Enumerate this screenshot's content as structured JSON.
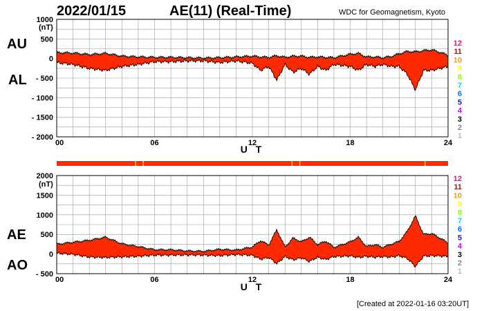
{
  "header": {
    "date": "2022/01/15",
    "title": "AE(11) (Real-Time)",
    "source": "WDC for Geomagnetism, Kyoto"
  },
  "footer": {
    "created": "[Created at 2022-01-16 03:20UT]"
  },
  "colors": {
    "fill": "#ff2a00",
    "line": "#000000",
    "grid": "#9a9a9a",
    "bar": "#ff2a00",
    "bar_yellow": "#ffd200"
  },
  "legend": [
    {
      "label": "12",
      "color": "#ff0090"
    },
    {
      "label": "11",
      "color": "#d60000"
    },
    {
      "label": "10",
      "color": "#ff9a00"
    },
    {
      "label": "9",
      "color": "#ffff00"
    },
    {
      "label": "8",
      "color": "#88ff00"
    },
    {
      "label": "7",
      "color": "#00d0ff"
    },
    {
      "label": "6",
      "color": "#0070ff"
    },
    {
      "label": "5",
      "color": "#2020c0"
    },
    {
      "label": "4",
      "color": "#d000ff"
    },
    {
      "label": "3",
      "color": "#000000"
    },
    {
      "label": "2",
      "color": "#888888"
    },
    {
      "label": "1",
      "color": "#bbbbbb"
    }
  ],
  "chart_data": [
    {
      "type": "area",
      "name": "AU/AL",
      "upper_label": "AU",
      "lower_label": "AL",
      "xlabel": "U T",
      "ylabel": "(nT)",
      "xlim": [
        0,
        24
      ],
      "ylim": [
        -2000,
        1000
      ],
      "xticks": [
        "00",
        "06",
        "12",
        "18",
        "24"
      ],
      "yticks": [
        "1000",
        "500",
        "0",
        "- 500",
        "- 1000",
        "- 1500",
        "- 2000"
      ],
      "x": [
        0,
        1,
        2,
        3,
        4,
        5,
        6,
        7,
        8,
        9,
        10,
        11,
        12,
        12.5,
        13,
        13.5,
        14,
        14.5,
        15,
        15.5,
        16,
        16.5,
        17,
        18,
        18.5,
        19,
        19.5,
        20,
        20.5,
        21,
        21.5,
        22,
        22.5,
        23,
        23.5,
        24
      ],
      "series": [
        {
          "name": "AU",
          "values": [
            150,
            140,
            100,
            130,
            60,
            40,
            30,
            30,
            20,
            10,
            20,
            40,
            60,
            40,
            30,
            70,
            30,
            60,
            60,
            30,
            40,
            30,
            20,
            110,
            130,
            40,
            40,
            20,
            50,
            120,
            180,
            170,
            200,
            220,
            160,
            80
          ]
        },
        {
          "name": "AL",
          "values": [
            -100,
            -150,
            -250,
            -300,
            -200,
            -150,
            -80,
            -80,
            -60,
            -60,
            -100,
            -60,
            -120,
            -300,
            -200,
            -550,
            -150,
            -350,
            -250,
            -400,
            -200,
            -300,
            -150,
            -200,
            -300,
            -150,
            -200,
            -150,
            -200,
            -200,
            -400,
            -800,
            -300,
            -300,
            -250,
            -200
          ]
        }
      ]
    },
    {
      "type": "area",
      "name": "AE/AO",
      "upper_label": "AE",
      "lower_label": "AO",
      "xlabel": "U T",
      "ylabel": "(nT)",
      "xlim": [
        0,
        24
      ],
      "ylim": [
        -500,
        2000
      ],
      "xticks": [
        "00",
        "06",
        "12",
        "18",
        "24"
      ],
      "yticks": [
        "2000",
        "1500",
        "1000",
        "500",
        "0",
        "- 500"
      ],
      "x": [
        0,
        1,
        2,
        3,
        4,
        5,
        6,
        7,
        8,
        9,
        10,
        11,
        12,
        12.5,
        13,
        13.5,
        14,
        14.5,
        15,
        15.5,
        16,
        16.5,
        17,
        18,
        18.5,
        19,
        19.5,
        20,
        20.5,
        21,
        21.5,
        22,
        22.5,
        23,
        23.5,
        24
      ],
      "series": [
        {
          "name": "AE",
          "values": [
            250,
            300,
            350,
            430,
            260,
            190,
            110,
            110,
            80,
            70,
            120,
            100,
            180,
            340,
            230,
            620,
            180,
            410,
            310,
            430,
            240,
            330,
            170,
            310,
            430,
            190,
            240,
            170,
            250,
            320,
            580,
            970,
            500,
            520,
            410,
            280
          ]
        },
        {
          "name": "AO",
          "values": [
            25,
            -5,
            -75,
            -85,
            -70,
            -55,
            -25,
            -25,
            -20,
            -25,
            -40,
            -10,
            -30,
            -130,
            -85,
            -240,
            -60,
            -145,
            -95,
            -185,
            -80,
            -135,
            -65,
            -45,
            -85,
            -55,
            -80,
            -65,
            -75,
            -40,
            -110,
            -315,
            -50,
            -40,
            -45,
            -60
          ]
        }
      ]
    }
  ]
}
